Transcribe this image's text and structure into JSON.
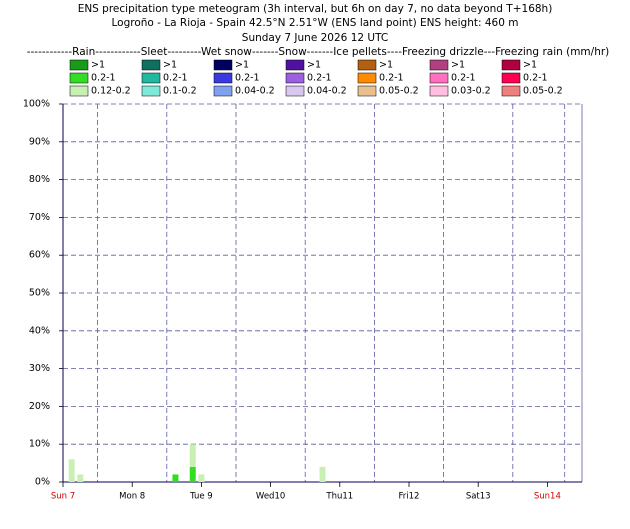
{
  "chart_data": {
    "type": "bar",
    "title": "ENS precipitation type meteogram (3h interval, but 6h on day 7, no data beyond T+168h)",
    "subtitle": "Logroño - La Rioja - Spain 42.5°N 2.51°W (ENS land point) ENS height: 460 m",
    "date": "Sunday  7 June 2026 12 UTC",
    "legend_header": "------------Rain------------Sleet---------Wet snow-------Snow-------Ice pellets----Freezing drizzle---Freezing rain (mm/hr)",
    "x": [
      3,
      6,
      39,
      45,
      48,
      90
    ],
    "xlim": [
      0,
      180
    ],
    "xticks": [
      {
        "value": 0,
        "label": "Sun 7"
      },
      {
        "value": 24,
        "label": "Mon 8"
      },
      {
        "value": 48,
        "label": "Tue 9"
      },
      {
        "value": 72,
        "label": "Wed10"
      },
      {
        "value": 96,
        "label": "Thu11"
      },
      {
        "value": 120,
        "label": "Fri12"
      },
      {
        "value": 144,
        "label": "Sat13"
      },
      {
        "value": 168,
        "label": "Sun14"
      }
    ],
    "highlight_ticks": [
      0,
      7
    ],
    "highlight_color": "#cc0000",
    "ylim": [
      0,
      100
    ],
    "yticks": [
      {
        "value": 0,
        "label": "0%"
      },
      {
        "value": 10,
        "label": "10%"
      },
      {
        "value": 20,
        "label": "20%"
      },
      {
        "value": 30,
        "label": "30%"
      },
      {
        "value": 40,
        "label": "40%"
      },
      {
        "value": 50,
        "label": "50%"
      },
      {
        "value": 60,
        "label": "60%"
      },
      {
        "value": 70,
        "label": "70%"
      },
      {
        "value": 80,
        "label": "80%"
      },
      {
        "value": 90,
        "label": "90%"
      },
      {
        "value": 100,
        "label": "100%"
      }
    ],
    "grid": true,
    "stacked": true,
    "series": [
      {
        "name": ">1",
        "color": "#1a9a1a",
        "values": [
          null,
          null,
          null,
          null,
          null,
          null
        ]
      },
      {
        "name": "0.2-1",
        "color": "#33dd22",
        "values": [
          null,
          null,
          2,
          4,
          null,
          null
        ]
      },
      {
        "name": "0.12-0.2",
        "color": "#c8f0b4",
        "values": [
          6,
          2,
          null,
          6,
          2,
          4
        ]
      },
      {
        "name": ">1",
        "color": "#0f7060",
        "values": [
          null,
          null,
          null,
          null,
          null,
          null
        ]
      },
      {
        "name": "0.2-1",
        "color": "#20b8a0",
        "values": [
          null,
          null,
          null,
          null,
          null,
          null
        ]
      },
      {
        "name": "0.1-0.2",
        "color": "#80e8d8",
        "values": [
          null,
          null,
          null,
          null,
          null,
          null
        ]
      },
      {
        "name": ">1",
        "color": "#000060",
        "values": [
          null,
          null,
          null,
          null,
          null,
          null
        ]
      },
      {
        "name": "0.2-1",
        "color": "#3a3ae0",
        "values": [
          null,
          null,
          null,
          null,
          null,
          null
        ]
      },
      {
        "name": "0.04-0.2",
        "color": "#80a0f0",
        "values": [
          null,
          null,
          null,
          null,
          null,
          null
        ]
      },
      {
        "name": ">1",
        "color": "#5010a0",
        "values": [
          null,
          null,
          null,
          null,
          null,
          null
        ]
      },
      {
        "name": "0.2-1",
        "color": "#9a60e0",
        "values": [
          null,
          null,
          null,
          null,
          null,
          null
        ]
      },
      {
        "name": "0.04-0.2",
        "color": "#d8c8f0",
        "values": [
          null,
          null,
          null,
          null,
          null,
          null
        ]
      },
      {
        "name": ">1",
        "color": "#b06010",
        "values": [
          null,
          null,
          null,
          null,
          null,
          null
        ]
      },
      {
        "name": "0.2-1",
        "color": "#ff8c00",
        "values": [
          null,
          null,
          null,
          null,
          null,
          null
        ]
      },
      {
        "name": "0.05-0.2",
        "color": "#e8c090",
        "values": [
          null,
          null,
          null,
          null,
          null,
          null
        ]
      },
      {
        "name": ">1",
        "color": "#b04080",
        "values": [
          null,
          null,
          null,
          null,
          null,
          null
        ]
      },
      {
        "name": "0.2-1",
        "color": "#ff70c0",
        "values": [
          null,
          null,
          null,
          null,
          null,
          null
        ]
      },
      {
        "name": "0.03-0.2",
        "color": "#ffc0e0",
        "values": [
          null,
          null,
          null,
          null,
          null,
          null
        ]
      },
      {
        "name": ">1",
        "color": "#b00040",
        "values": [
          null,
          null,
          null,
          null,
          null,
          null
        ]
      },
      {
        "name": "0.2-1",
        "color": "#ff0050",
        "values": [
          null,
          null,
          null,
          null,
          null,
          null
        ]
      },
      {
        "name": "0.05-0.2",
        "color": "#f08080",
        "values": [
          null,
          null,
          null,
          null,
          null,
          null
        ]
      }
    ]
  }
}
